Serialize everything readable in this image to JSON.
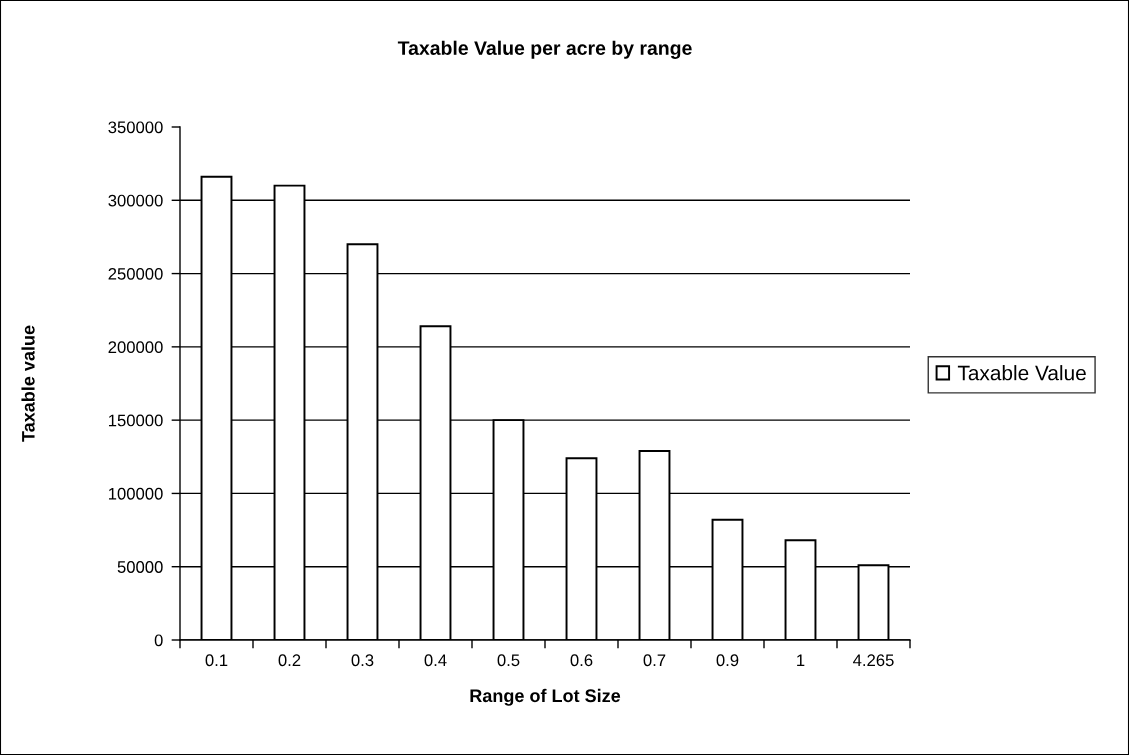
{
  "chart_data": {
    "type": "bar",
    "title": "Taxable Value per acre by range",
    "xlabel": "Range of Lot Size",
    "ylabel": "Taxable value",
    "categories": [
      "0.1",
      "0.2",
      "0.3",
      "0.4",
      "0.5",
      "0.6",
      "0.7",
      "0.9",
      "1",
      "4.265"
    ],
    "series": [
      {
        "name": "Taxable Value",
        "color": "#ffffff",
        "values": [
          316000,
          310000,
          270000,
          214000,
          150000,
          124000,
          129000,
          82000,
          68000,
          51000
        ]
      }
    ],
    "ylim": [
      0,
      350000
    ],
    "yticks": [
      0,
      50000,
      100000,
      150000,
      200000,
      250000,
      300000,
      350000
    ],
    "grid": "y",
    "legend": "right"
  }
}
